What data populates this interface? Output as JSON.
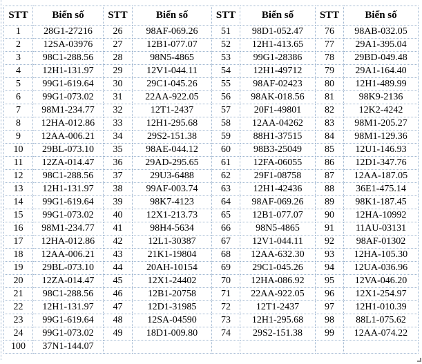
{
  "colors": {
    "border": "#9fb6d0",
    "text": "#000000",
    "background": "#ffffff"
  },
  "table": {
    "header": {
      "stt": "STT",
      "plate": "Biển số"
    },
    "columns": [
      {
        "entries": [
          {
            "stt": "1",
            "plate": "28G1-27216"
          },
          {
            "stt": "2",
            "plate": "12SA-03976"
          },
          {
            "stt": "3",
            "plate": "98C1-288.56"
          },
          {
            "stt": "4",
            "plate": "12H1-131.97"
          },
          {
            "stt": "5",
            "plate": "99G1-619.64"
          },
          {
            "stt": "6",
            "plate": "99G1-073.02"
          },
          {
            "stt": "7",
            "plate": "98M1-234.77"
          },
          {
            "stt": "8",
            "plate": "12HA-012.86"
          },
          {
            "stt": "9",
            "plate": "12AA-006.21"
          },
          {
            "stt": "10",
            "plate": "29BL-073.10"
          },
          {
            "stt": "11",
            "plate": "12ZA-014.47"
          },
          {
            "stt": "12",
            "plate": "98C1-288.56"
          },
          {
            "stt": "13",
            "plate": "12H1-131.97"
          },
          {
            "stt": "14",
            "plate": "99G1-619.64"
          },
          {
            "stt": "15",
            "plate": "99G1-073.02"
          },
          {
            "stt": "16",
            "plate": "98M1-234.77"
          },
          {
            "stt": "17",
            "plate": "12HA-012.86"
          },
          {
            "stt": "18",
            "plate": "12AA-006.21"
          },
          {
            "stt": "19",
            "plate": "29BL-073.10"
          },
          {
            "stt": "20",
            "plate": "12ZA-014.47"
          },
          {
            "stt": "21",
            "plate": "98C1-288.56"
          },
          {
            "stt": "22",
            "plate": "12H1-131.97"
          },
          {
            "stt": "23",
            "plate": "99G1-619.64"
          },
          {
            "stt": "24",
            "plate": "99G1-073.02"
          },
          {
            "stt": "100",
            "plate": "37N1-144.07"
          }
        ]
      },
      {
        "entries": [
          {
            "stt": "26",
            "plate": "98AF-069.26"
          },
          {
            "stt": "27",
            "plate": "12B1-077.07"
          },
          {
            "stt": "28",
            "plate": "98N5-4865"
          },
          {
            "stt": "29",
            "plate": "12V1-044.11"
          },
          {
            "stt": "30",
            "plate": "29C1-045.26"
          },
          {
            "stt": "31",
            "plate": "22AA-922.05"
          },
          {
            "stt": "32",
            "plate": "12T1-2437"
          },
          {
            "stt": "33",
            "plate": "12H1-295.68"
          },
          {
            "stt": "34",
            "plate": "29S2-151.38"
          },
          {
            "stt": "35",
            "plate": "98AE-044.12"
          },
          {
            "stt": "36",
            "plate": "29AD-295.65"
          },
          {
            "stt": "37",
            "plate": "29U3-6488"
          },
          {
            "stt": "38",
            "plate": "99AF-003.74"
          },
          {
            "stt": "39",
            "plate": "98K7-4123"
          },
          {
            "stt": "40",
            "plate": "12X1-213.73"
          },
          {
            "stt": "41",
            "plate": "98H4-5634"
          },
          {
            "stt": "42",
            "plate": "12L1-30387"
          },
          {
            "stt": "43",
            "plate": "21K1-19804"
          },
          {
            "stt": "44",
            "plate": "20AH-10154"
          },
          {
            "stt": "45",
            "plate": "12X1-24402"
          },
          {
            "stt": "46",
            "plate": "12B1-20758"
          },
          {
            "stt": "47",
            "plate": "12D1-31985"
          },
          {
            "stt": "48",
            "plate": "12SA-04590"
          },
          {
            "stt": "49",
            "plate": "18D1-009.80"
          },
          {
            "stt": "",
            "plate": ""
          }
        ]
      },
      {
        "entries": [
          {
            "stt": "51",
            "plate": "98D1-052.47"
          },
          {
            "stt": "52",
            "plate": "12H1-413.65"
          },
          {
            "stt": "53",
            "plate": "99G1-28386"
          },
          {
            "stt": "54",
            "plate": "12H1-49712"
          },
          {
            "stt": "55",
            "plate": "98AF-02423"
          },
          {
            "stt": "56",
            "plate": "98AK-018.56"
          },
          {
            "stt": "57",
            "plate": "20F1-49801"
          },
          {
            "stt": "58",
            "plate": "12AA-04262"
          },
          {
            "stt": "59",
            "plate": "88H1-37515"
          },
          {
            "stt": "60",
            "plate": "98B3-25049"
          },
          {
            "stt": "61",
            "plate": "12FA-06055"
          },
          {
            "stt": "62",
            "plate": "29F1-08758"
          },
          {
            "stt": "63",
            "plate": "12H1-42436"
          },
          {
            "stt": "64",
            "plate": "98AF-069.26"
          },
          {
            "stt": "65",
            "plate": "12B1-077.07"
          },
          {
            "stt": "66",
            "plate": "98N5-4865"
          },
          {
            "stt": "67",
            "plate": "12V1-044.11"
          },
          {
            "stt": "68",
            "plate": "12AA-632.30"
          },
          {
            "stt": "69",
            "plate": "29C1-045.26"
          },
          {
            "stt": "70",
            "plate": "12HA-086.92"
          },
          {
            "stt": "71",
            "plate": "22AA-922.05"
          },
          {
            "stt": "72",
            "plate": "12T1-2437"
          },
          {
            "stt": "73",
            "plate": "12H1-295.68"
          },
          {
            "stt": "74",
            "plate": "29S2-151.38"
          },
          {
            "stt": "",
            "plate": ""
          }
        ]
      },
      {
        "entries": [
          {
            "stt": "76",
            "plate": "98AB-032.05"
          },
          {
            "stt": "77",
            "plate": "29A1-395.04"
          },
          {
            "stt": "78",
            "plate": "29BD-049.48"
          },
          {
            "stt": "79",
            "plate": "29A1-164.40"
          },
          {
            "stt": "80",
            "plate": "12H1-489.99"
          },
          {
            "stt": "81",
            "plate": "98K9-2136"
          },
          {
            "stt": "82",
            "plate": "12K2-4242"
          },
          {
            "stt": "83",
            "plate": "98M1-205.27"
          },
          {
            "stt": "84",
            "plate": "98M1-129.36"
          },
          {
            "stt": "85",
            "plate": "12U1-146.93"
          },
          {
            "stt": "86",
            "plate": "12D1-347.76"
          },
          {
            "stt": "87",
            "plate": "12AA-187.05"
          },
          {
            "stt": "88",
            "plate": "36E1-475.14"
          },
          {
            "stt": "89",
            "plate": "98K1-187.45"
          },
          {
            "stt": "90",
            "plate": "12HA-10992"
          },
          {
            "stt": "91",
            "plate": "11AU-03131"
          },
          {
            "stt": "92",
            "plate": "98AF-01302"
          },
          {
            "stt": "93",
            "plate": "12HA-105.30"
          },
          {
            "stt": "94",
            "plate": "12UA-036.96"
          },
          {
            "stt": "95",
            "plate": "12VA-046.20"
          },
          {
            "stt": "96",
            "plate": "12X1-254.97"
          },
          {
            "stt": "97",
            "plate": "12H1-010.39"
          },
          {
            "stt": "98",
            "plate": "88L1-075.62"
          },
          {
            "stt": "99",
            "plate": "12AA-074.22"
          },
          {
            "stt": "",
            "plate": ""
          }
        ]
      }
    ]
  }
}
